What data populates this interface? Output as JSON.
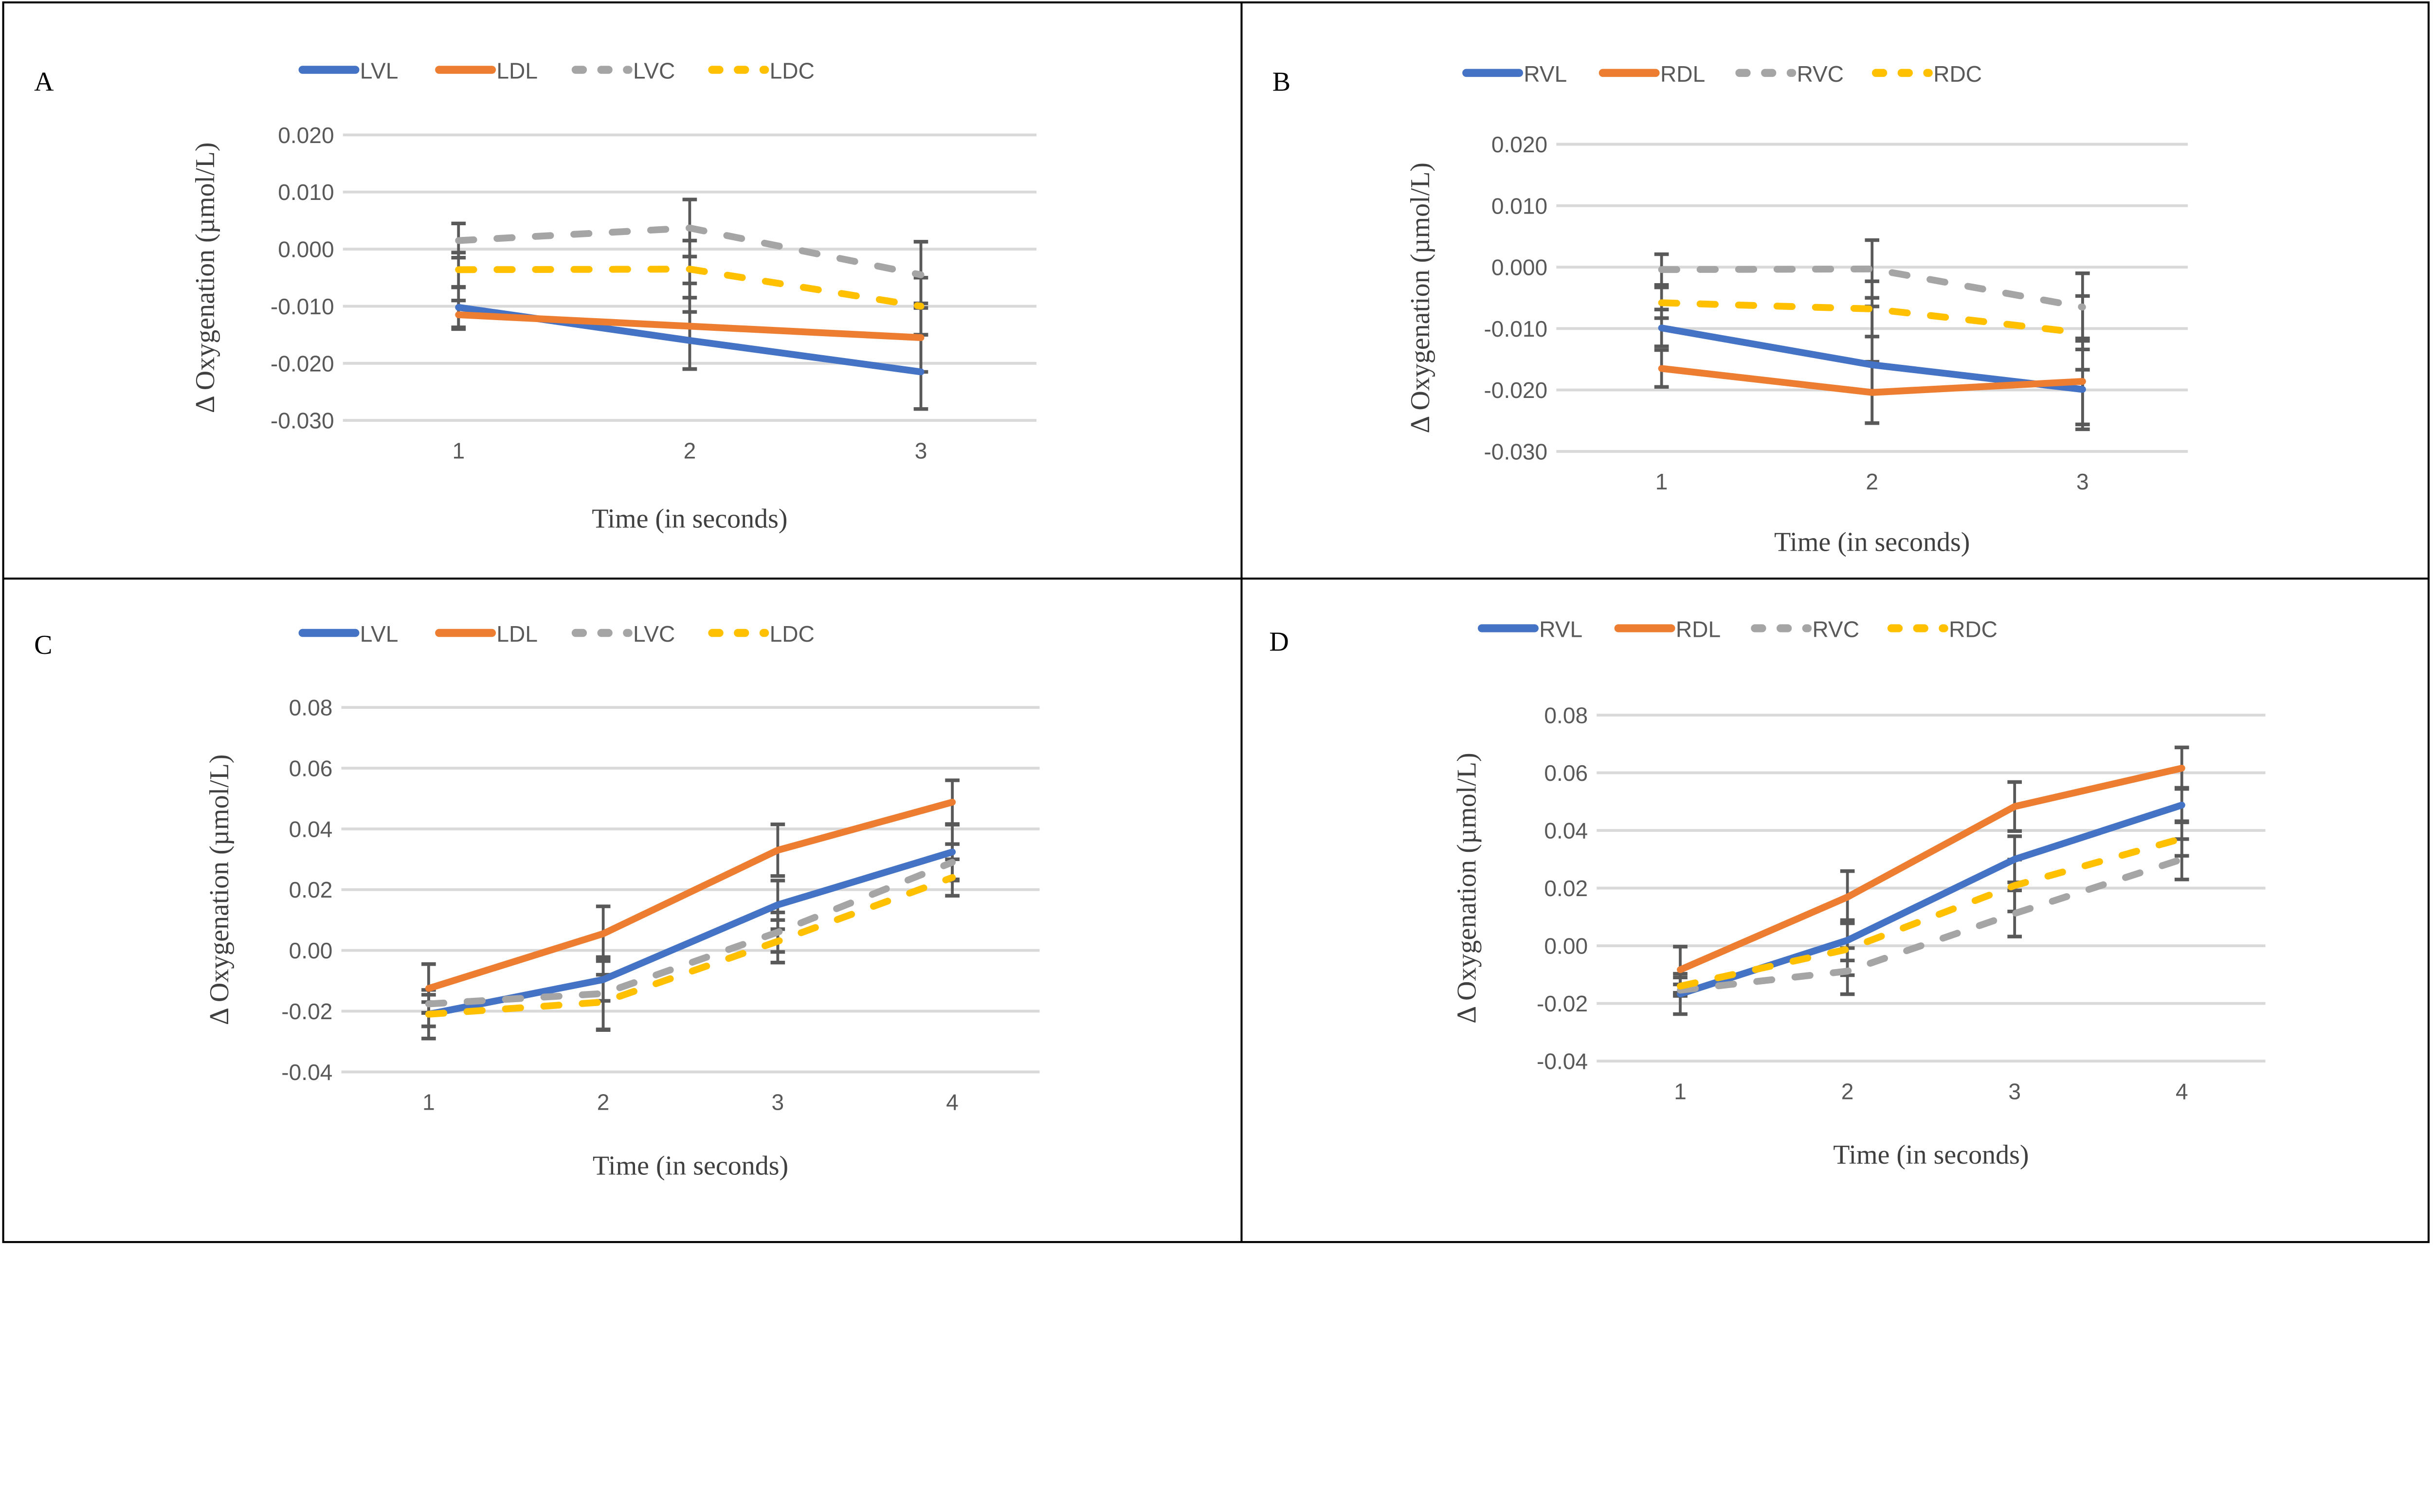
{
  "chart_data": [
    {
      "panel": "A",
      "type": "line",
      "categories": [
        "1",
        "2",
        "3"
      ],
      "xlabel": "Time (in seconds)",
      "ylabel": "Δ Oxygenation (µmol/L)",
      "ylim": [
        -0.03,
        0.02
      ],
      "yticks": [
        "0.020",
        "0.010",
        "0.000",
        "-0.010",
        "-0.020",
        "-0.030"
      ],
      "grid": true,
      "legend": "top",
      "series": [
        {
          "name": "LVL",
          "color": "#4472C4",
          "dash": false,
          "values": [
            -0.0102,
            -0.016,
            -0.0215
          ],
          "error": [
            0.0035,
            0.005,
            0.0065
          ]
        },
        {
          "name": "LDL",
          "color": "#ED7D31",
          "dash": false,
          "values": [
            -0.0115,
            -0.0135,
            -0.0155
          ],
          "error": [
            0.0025,
            0.0075,
            0.006
          ]
        },
        {
          "name": "LVC",
          "color": "#A5A5A5",
          "dash": true,
          "values": [
            0.0015,
            0.0037,
            -0.0045
          ],
          "error": [
            0.003,
            0.005,
            0.0058
          ]
        },
        {
          "name": "LDC",
          "color": "#FFC000",
          "dash": true,
          "values": [
            -0.0036,
            -0.0035,
            -0.01
          ],
          "error": [
            0.003,
            0.005,
            0.005
          ]
        }
      ]
    },
    {
      "panel": "B",
      "type": "line",
      "categories": [
        "1",
        "2",
        "3"
      ],
      "xlabel": "Time (in seconds)",
      "ylabel": "Δ Oxygenation (µmol/L)",
      "ylim": [
        -0.03,
        0.02
      ],
      "yticks": [
        "0.020",
        "0.010",
        "0.000",
        "-0.010",
        "-0.020",
        "-0.030"
      ],
      "grid": true,
      "legend": "top",
      "series": [
        {
          "name": "RVL",
          "color": "#4472C4",
          "dash": false,
          "values": [
            -0.0099,
            -0.0159,
            -0.0199
          ],
          "error": [
            0.003,
            0.0095,
            0.0065
          ]
        },
        {
          "name": "RDL",
          "color": "#ED7D31",
          "dash": false,
          "values": [
            -0.0165,
            -0.0204,
            -0.0186
          ],
          "error": [
            0.003,
            0.005,
            0.007
          ]
        },
        {
          "name": "RVC",
          "color": "#A5A5A5",
          "dash": true,
          "values": [
            -0.0004,
            -0.0003,
            -0.0065
          ],
          "error": [
            0.0025,
            0.0047,
            0.0055
          ]
        },
        {
          "name": "RDC",
          "color": "#FFC000",
          "dash": true,
          "values": [
            -0.0058,
            -0.0068,
            -0.0107
          ],
          "error": [
            0.0025,
            0.0045,
            0.006
          ]
        }
      ]
    },
    {
      "panel": "C",
      "type": "line",
      "categories": [
        "1",
        "2",
        "3",
        "4"
      ],
      "xlabel": "Time (in seconds)",
      "ylabel": "Δ Oxygenation (µmol/L)",
      "ylim": [
        -0.04,
        0.08
      ],
      "yticks": [
        "0.08",
        "0.06",
        "0.04",
        "0.02",
        "0.00",
        "-0.02",
        "-0.04"
      ],
      "grid": true,
      "legend": "top",
      "series": [
        {
          "name": "LVL",
          "color": "#4472C4",
          "dash": false,
          "values": [
            -0.021,
            -0.0096,
            0.015,
            0.0324
          ],
          "error": [
            0.008,
            0.007,
            0.008,
            0.009
          ]
        },
        {
          "name": "LDL",
          "color": "#ED7D31",
          "dash": false,
          "values": [
            -0.0125,
            0.0055,
            0.033,
            0.0488
          ],
          "error": [
            0.008,
            0.009,
            0.0085,
            0.0072
          ]
        },
        {
          "name": "LVC",
          "color": "#A5A5A5",
          "dash": true,
          "values": [
            -0.0176,
            -0.0142,
            0.006,
            0.029
          ],
          "error": [
            0.003,
            0.012,
            0.0065,
            0.006
          ]
        },
        {
          "name": "LDC",
          "color": "#FFC000",
          "dash": true,
          "values": [
            -0.021,
            -0.017,
            0.003,
            0.024
          ],
          "error": [
            0.004,
            0.009,
            0.007,
            0.006
          ]
        }
      ]
    },
    {
      "panel": "D",
      "type": "line",
      "categories": [
        "1",
        "2",
        "3",
        "4"
      ],
      "xlabel": "Time (in seconds)",
      "ylabel": "Δ Oxygenation (µmol/L)",
      "ylim": [
        -0.04,
        0.08
      ],
      "yticks": [
        "0.08",
        "0.06",
        "0.04",
        "0.02",
        "0.00",
        "-0.02",
        "-0.04"
      ],
      "grid": true,
      "legend": "top",
      "series": [
        {
          "name": "RVL",
          "color": "#4472C4",
          "dash": false,
          "values": [
            -0.0167,
            0.0019,
            0.03,
            0.0488
          ],
          "error": [
            0.007,
            0.007,
            0.008,
            0.006
          ]
        },
        {
          "name": "RDL",
          "color": "#ED7D31",
          "dash": false,
          "values": [
            -0.0083,
            0.0169,
            0.0483,
            0.0616
          ],
          "error": [
            0.008,
            0.009,
            0.0085,
            0.0072
          ]
        },
        {
          "name": "RVC",
          "color": "#A5A5A5",
          "dash": true,
          "values": [
            -0.0154,
            -0.0088,
            0.0112,
            0.03
          ],
          "error": [
            0.002,
            0.008,
            0.008,
            0.007
          ]
        },
        {
          "name": "RDC",
          "color": "#FFC000",
          "dash": true,
          "values": [
            -0.014,
            -0.0012,
            0.0209,
            0.0372
          ],
          "error": [
            0.003,
            0.009,
            0.009,
            0.006
          ]
        }
      ]
    }
  ]
}
